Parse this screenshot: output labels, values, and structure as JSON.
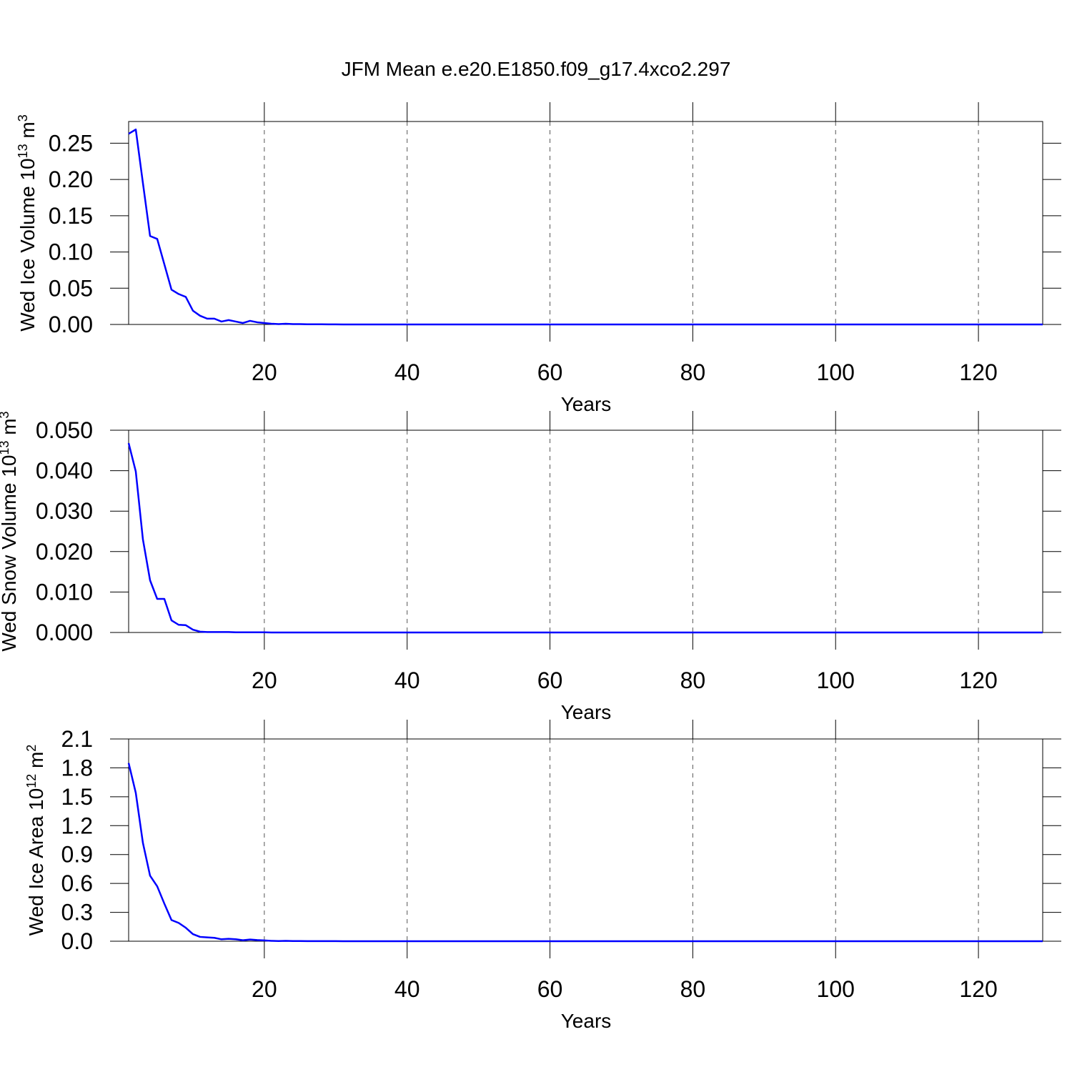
{
  "chart_data": [
    {
      "type": "line",
      "title": "JFM Mean e.e20.E1850.f09_g17.4xco2.297",
      "xlabel": "Years",
      "ylabel": [
        "Wed Ice Volume 10",
        "13",
        " m",
        "3"
      ],
      "color": "#0000ff",
      "grid": true,
      "xlim": [
        1,
        129
      ],
      "xticks": [
        20,
        40,
        60,
        80,
        100,
        120
      ],
      "ylim": [
        0,
        0.28
      ],
      "yticks": [
        {
          "value": 0,
          "label": "0.00"
        },
        0.05,
        {
          "value": 0.1,
          "label": "0.10"
        },
        0.15,
        {
          "value": 0.2,
          "label": "0.20"
        },
        0.25
      ],
      "x": [
        1,
        2,
        3,
        4,
        5,
        6,
        7,
        8,
        9,
        10,
        11,
        12,
        13,
        14,
        15,
        16,
        17,
        18,
        19,
        20,
        21,
        22,
        23,
        24,
        25,
        26,
        27,
        28,
        29,
        30,
        31,
        32,
        33,
        34,
        35,
        36,
        37,
        38,
        39,
        40,
        41,
        42,
        43,
        44,
        45,
        46,
        47,
        48,
        49,
        50,
        51,
        52,
        53,
        54,
        55,
        56,
        57,
        58,
        59,
        60,
        61,
        62,
        63,
        64,
        65,
        66,
        67,
        68,
        69,
        70,
        71,
        72,
        73,
        74,
        75,
        76,
        77,
        78,
        79,
        80,
        81,
        82,
        83,
        84,
        85,
        86,
        87,
        88,
        89,
        90,
        91,
        92,
        93,
        94,
        95,
        96,
        97,
        98,
        99,
        100,
        101,
        102,
        103,
        104,
        105,
        106,
        107,
        108,
        109,
        110,
        111,
        112,
        113,
        114,
        115,
        116,
        117,
        118,
        119,
        120,
        121,
        122,
        123,
        124,
        125,
        126,
        127,
        128,
        129
      ],
      "values": [
        0.263,
        0.269,
        0.195,
        0.122,
        0.118,
        0.083,
        0.048,
        0.042,
        0.038,
        0.019,
        0.012,
        0.008,
        0.008,
        0.004,
        0.006,
        0.004,
        0.002,
        0.005,
        0.003,
        0.002,
        0.001,
        0.0005,
        0.001,
        0.0005,
        0.0005,
        0.0003,
        0.0002,
        0.0002,
        0.0001,
        0.0001,
        0,
        0,
        0,
        0,
        0,
        0,
        0,
        0,
        0,
        0,
        0,
        0,
        0,
        0,
        0,
        0,
        0,
        0,
        0,
        0,
        0,
        0,
        0,
        0,
        0,
        0,
        0,
        0,
        0,
        0,
        0,
        0,
        0,
        0,
        0,
        0,
        0,
        0,
        0,
        0,
        0,
        0,
        0,
        0,
        0,
        0,
        0,
        0,
        0,
        0,
        0,
        0,
        0,
        0,
        0,
        0,
        0,
        0,
        0,
        0,
        0,
        0,
        0,
        0,
        0,
        0,
        0,
        0,
        0,
        0,
        0,
        0,
        0,
        0,
        0,
        0,
        0,
        0,
        0,
        0,
        0,
        0,
        0,
        0,
        0,
        0,
        0,
        0,
        0,
        0,
        0,
        0,
        0,
        0,
        0,
        0,
        0,
        0,
        0
      ]
    },
    {
      "type": "line",
      "xlabel": "Years",
      "ylabel": [
        "Wed Snow Volume 10",
        "13",
        " m",
        "3"
      ],
      "color": "#0000ff",
      "grid": true,
      "xlim": [
        1,
        129
      ],
      "xticks": [
        20,
        40,
        60,
        80,
        100,
        120
      ],
      "ylim": [
        0,
        0.05
      ],
      "yticks": [
        {
          "value": 0,
          "label": "0.000"
        },
        {
          "value": 0.01,
          "label": "0.010"
        },
        {
          "value": 0.02,
          "label": "0.020"
        },
        {
          "value": 0.03,
          "label": "0.030"
        },
        {
          "value": 0.04,
          "label": "0.040"
        },
        {
          "value": 0.05,
          "label": "0.050"
        }
      ],
      "x": [
        1,
        2,
        3,
        4,
        5,
        6,
        7,
        8,
        9,
        10,
        11,
        12,
        13,
        14,
        15,
        16,
        17,
        18,
        19,
        20,
        21,
        22,
        23,
        24,
        25,
        26,
        27,
        28,
        29,
        30,
        31,
        32,
        33,
        34,
        35,
        36,
        37,
        38,
        39,
        40,
        41,
        42,
        43,
        44,
        45,
        46,
        47,
        48,
        49,
        50,
        51,
        52,
        53,
        54,
        55,
        56,
        57,
        58,
        59,
        60,
        61,
        62,
        63,
        64,
        65,
        66,
        67,
        68,
        69,
        70,
        71,
        72,
        73,
        74,
        75,
        76,
        77,
        78,
        79,
        80,
        81,
        82,
        83,
        84,
        85,
        86,
        87,
        88,
        89,
        90,
        91,
        92,
        93,
        94,
        95,
        96,
        97,
        98,
        99,
        100,
        101,
        102,
        103,
        104,
        105,
        106,
        107,
        108,
        109,
        110,
        111,
        112,
        113,
        114,
        115,
        116,
        117,
        118,
        119,
        120,
        121,
        122,
        123,
        124,
        125,
        126,
        127,
        128,
        129
      ],
      "values": [
        0.0468,
        0.0398,
        0.023,
        0.0129,
        0.0083,
        0.0083,
        0.003,
        0.0019,
        0.0018,
        0.0007,
        0.0002,
        0.0001,
        0.0001,
        0.0001,
        0.0001,
        5e-05,
        5e-05,
        5e-05,
        5e-05,
        5e-05,
        0,
        0,
        0,
        0,
        0,
        0,
        0,
        0,
        0,
        0,
        0,
        0,
        0,
        0,
        0,
        0,
        0,
        0,
        0,
        0,
        0,
        0,
        0,
        0,
        0,
        0,
        0,
        0,
        0,
        0,
        0,
        0,
        0,
        0,
        0,
        0,
        0,
        0,
        0,
        0,
        0,
        0,
        0,
        0,
        0,
        0,
        0,
        0,
        0,
        0,
        0,
        0,
        0,
        0,
        0,
        0,
        0,
        0,
        0,
        0,
        0,
        0,
        0,
        0,
        0,
        0,
        0,
        0,
        0,
        0,
        0,
        0,
        0,
        0,
        0,
        0,
        0,
        0,
        0,
        0,
        0,
        0,
        0,
        0,
        0,
        0,
        0,
        0,
        0,
        0,
        0,
        0,
        0,
        0,
        0,
        0,
        0,
        0,
        0,
        0,
        0,
        0,
        0,
        0,
        0,
        0,
        0,
        0,
        0
      ]
    },
    {
      "type": "line",
      "xlabel": "Years",
      "ylabel": [
        "Wed Ice Area 10",
        "12",
        " m",
        "2"
      ],
      "color": "#0000ff",
      "grid": true,
      "xlim": [
        1,
        129
      ],
      "xticks": [
        20,
        40,
        60,
        80,
        100,
        120
      ],
      "ylim": [
        0,
        2.1
      ],
      "yticks": [
        {
          "value": 0,
          "label": "0.0"
        },
        0.3,
        0.6,
        0.9,
        1.2,
        1.5,
        1.8,
        2.1
      ],
      "x": [
        1,
        2,
        3,
        4,
        5,
        6,
        7,
        8,
        9,
        10,
        11,
        12,
        13,
        14,
        15,
        16,
        17,
        18,
        19,
        20,
        21,
        22,
        23,
        24,
        25,
        26,
        27,
        28,
        29,
        30,
        31,
        32,
        33,
        34,
        35,
        36,
        37,
        38,
        39,
        40,
        41,
        42,
        43,
        44,
        45,
        46,
        47,
        48,
        49,
        50,
        51,
        52,
        53,
        54,
        55,
        56,
        57,
        58,
        59,
        60,
        61,
        62,
        63,
        64,
        65,
        66,
        67,
        68,
        69,
        70,
        71,
        72,
        73,
        74,
        75,
        76,
        77,
        78,
        79,
        80,
        81,
        82,
        83,
        84,
        85,
        86,
        87,
        88,
        89,
        90,
        91,
        92,
        93,
        94,
        95,
        96,
        97,
        98,
        99,
        100,
        101,
        102,
        103,
        104,
        105,
        106,
        107,
        108,
        109,
        110,
        111,
        112,
        113,
        114,
        115,
        116,
        117,
        118,
        119,
        120,
        121,
        122,
        123,
        124,
        125,
        126,
        127,
        128,
        129
      ],
      "values": [
        1.85,
        1.54,
        1.02,
        0.68,
        0.57,
        0.39,
        0.22,
        0.19,
        0.14,
        0.074,
        0.045,
        0.04,
        0.035,
        0.02,
        0.025,
        0.02,
        0.01,
        0.018,
        0.012,
        0.008,
        0.004,
        0.002,
        0.004,
        0.002,
        0.002,
        0.001,
        0.001,
        0.001,
        0.001,
        0.001,
        0,
        0,
        0,
        0,
        0,
        0,
        0,
        0,
        0,
        0,
        0,
        0,
        0,
        0,
        0,
        0,
        0,
        0,
        0,
        0,
        0,
        0,
        0,
        0,
        0,
        0,
        0,
        0,
        0,
        0,
        0,
        0,
        0,
        0,
        0,
        0,
        0,
        0,
        0,
        0,
        0,
        0,
        0,
        0,
        0,
        0,
        0,
        0,
        0,
        0,
        0,
        0,
        0,
        0,
        0,
        0,
        0,
        0,
        0,
        0,
        0,
        0,
        0,
        0,
        0,
        0,
        0,
        0,
        0,
        0,
        0,
        0,
        0,
        0,
        0,
        0,
        0,
        0,
        0,
        0,
        0,
        0,
        0,
        0,
        0,
        0,
        0,
        0,
        0,
        0,
        0,
        0,
        0,
        0,
        0,
        0,
        0,
        0,
        0
      ]
    }
  ]
}
